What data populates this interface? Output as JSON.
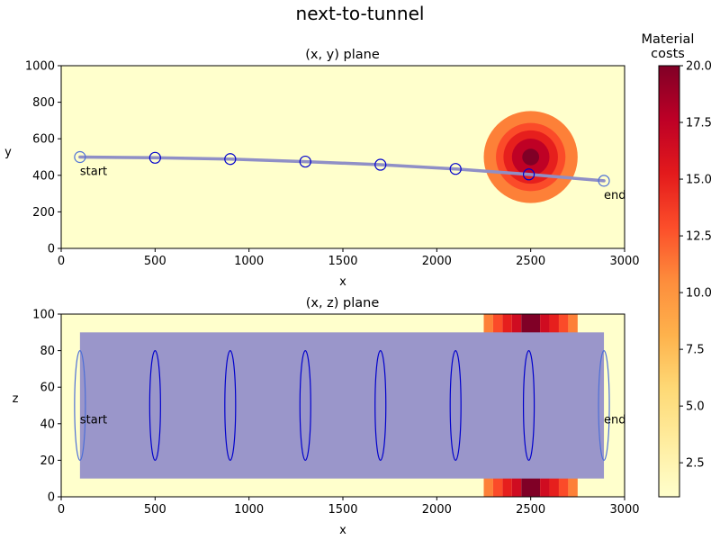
{
  "chart_data": {
    "type": "figure",
    "title": "next-to-tunnel",
    "colors": {
      "background_low": "#ffffcc",
      "path_line": "#8f8fc6",
      "tunnel_fill": "#9a96ca",
      "marker": "#0000cc",
      "endpoint_marker": "#4d6fd6"
    },
    "colormap": "YlOrRd",
    "colorbar": {
      "title_lines": [
        "Material",
        "costs"
      ],
      "range": [
        1,
        20
      ],
      "ticks": [
        2.5,
        5.0,
        7.5,
        10.0,
        12.5,
        15.0,
        17.5,
        20.0
      ],
      "tick_labels": [
        "2.5",
        "5.0",
        "7.5",
        "10.0",
        "12.5",
        "15.0",
        "17.5",
        "20.0"
      ]
    },
    "hotspot": {
      "center_x": 2500,
      "center_y": 500,
      "ring_radii": [
        250,
        185,
        145,
        100,
        45
      ],
      "ring_costs": [
        11,
        13,
        15,
        17.5,
        20
      ]
    },
    "xz_cost_bands": [
      {
        "x0": 2250,
        "x1": 2300,
        "cost": 11
      },
      {
        "x0": 2300,
        "x1": 2350,
        "cost": 13
      },
      {
        "x0": 2350,
        "x1": 2400,
        "cost": 15
      },
      {
        "x0": 2400,
        "x1": 2450,
        "cost": 16.5
      },
      {
        "x0": 2450,
        "x1": 2550,
        "cost": 20
      },
      {
        "x0": 2550,
        "x1": 2600,
        "cost": 16.5
      },
      {
        "x0": 2600,
        "x1": 2650,
        "cost": 15
      },
      {
        "x0": 2650,
        "x1": 2700,
        "cost": 13
      },
      {
        "x0": 2700,
        "x1": 2750,
        "cost": 11
      }
    ],
    "path": {
      "x": [
        100,
        500,
        900,
        1300,
        1700,
        2100,
        2490,
        2890
      ],
      "y": [
        500,
        496,
        489,
        475,
        458,
        435,
        405,
        370
      ]
    },
    "tunnel_xz": {
      "x0": 100,
      "x1": 2890,
      "z0": 10,
      "z1": 90
    },
    "cross_section": {
      "z_center": 50,
      "half_height": 30
    },
    "labels": {
      "start": "start",
      "end": "end"
    },
    "subplots": [
      {
        "title": "(x, y) plane",
        "xlabel": "x",
        "ylabel": "y",
        "xlim": [
          0,
          3000
        ],
        "ylim": [
          0,
          1000
        ],
        "xticks": [
          0,
          500,
          1000,
          1500,
          2000,
          2500,
          3000
        ],
        "yticks": [
          0,
          200,
          400,
          600,
          800,
          1000
        ]
      },
      {
        "title": "(x, z) plane",
        "xlabel": "x",
        "ylabel": "z",
        "xlim": [
          0,
          3000
        ],
        "ylim": [
          0,
          100
        ],
        "xticks": [
          0,
          500,
          1000,
          1500,
          2000,
          2500,
          3000
        ],
        "yticks": [
          0,
          20,
          40,
          60,
          80,
          100
        ]
      }
    ]
  }
}
